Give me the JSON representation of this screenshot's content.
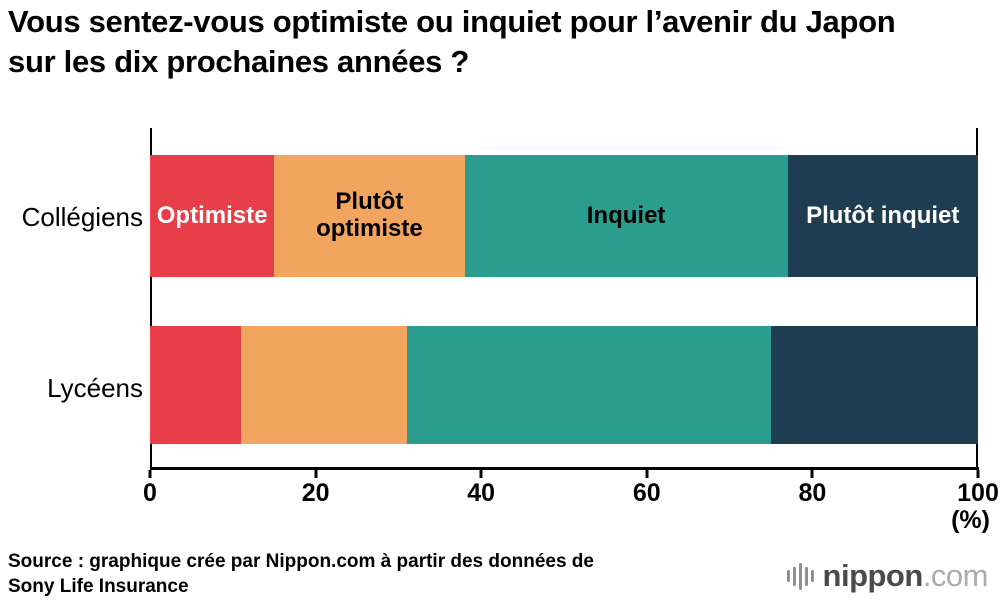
{
  "title": "Vous sentez-vous optimiste ou inquiet pour l’avenir du Japon sur les dix prochaines années ?",
  "chart_data": {
    "type": "bar",
    "orientation": "horizontal",
    "stacked": true,
    "categories": [
      "Collégiens",
      "Lycéens"
    ],
    "series": [
      {
        "name": "Optimiste",
        "color": "#e73e49",
        "label_color": "#ffffff",
        "values": [
          15,
          11
        ]
      },
      {
        "name": "Plutôt optimiste",
        "color": "#f2a55e",
        "label_color": "#000000",
        "values": [
          23,
          20
        ]
      },
      {
        "name": "Inquiet",
        "color": "#2a9d8e",
        "label_color": "#000000",
        "values": [
          39,
          44
        ]
      },
      {
        "name": "Plutôt inquiet",
        "color": "#1f3d51",
        "label_color": "#ffffff",
        "values": [
          23,
          25
        ]
      }
    ],
    "x_ticks": [
      0,
      20,
      40,
      60,
      80,
      100
    ],
    "x_unit_label": "(%)",
    "xlim": [
      0,
      100
    ],
    "segment_labels_shown_on": "Collégiens",
    "grid": false,
    "legend": "inside-bars"
  },
  "source": {
    "line1": "Source : graphique crée par Nippon.com à partir des données de",
    "line2": "Sony Life Insurance"
  },
  "logo": {
    "main": "nippon",
    "tld": ".com"
  }
}
